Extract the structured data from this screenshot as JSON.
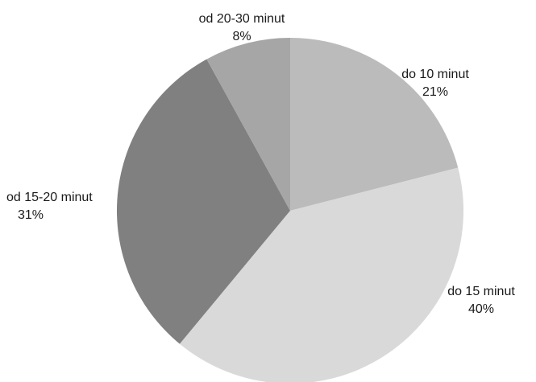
{
  "chart_data": {
    "type": "pie",
    "title": "",
    "start_angle_deg": 0,
    "direction": "clockwise",
    "legend": "none",
    "slices": [
      {
        "label": "do 10 minut",
        "value": 21,
        "percent_label": "21%",
        "color": "#bbbbbb"
      },
      {
        "label": "do 15 minut",
        "value": 40,
        "percent_label": "40%",
        "color": "#d9d9d9"
      },
      {
        "label": "od 15-20 minut",
        "value": 31,
        "percent_label": "31%",
        "color": "#808080"
      },
      {
        "label": "od 20-30 minut",
        "value": 8,
        "percent_label": "8%",
        "color": "#a6a6a6"
      }
    ]
  }
}
